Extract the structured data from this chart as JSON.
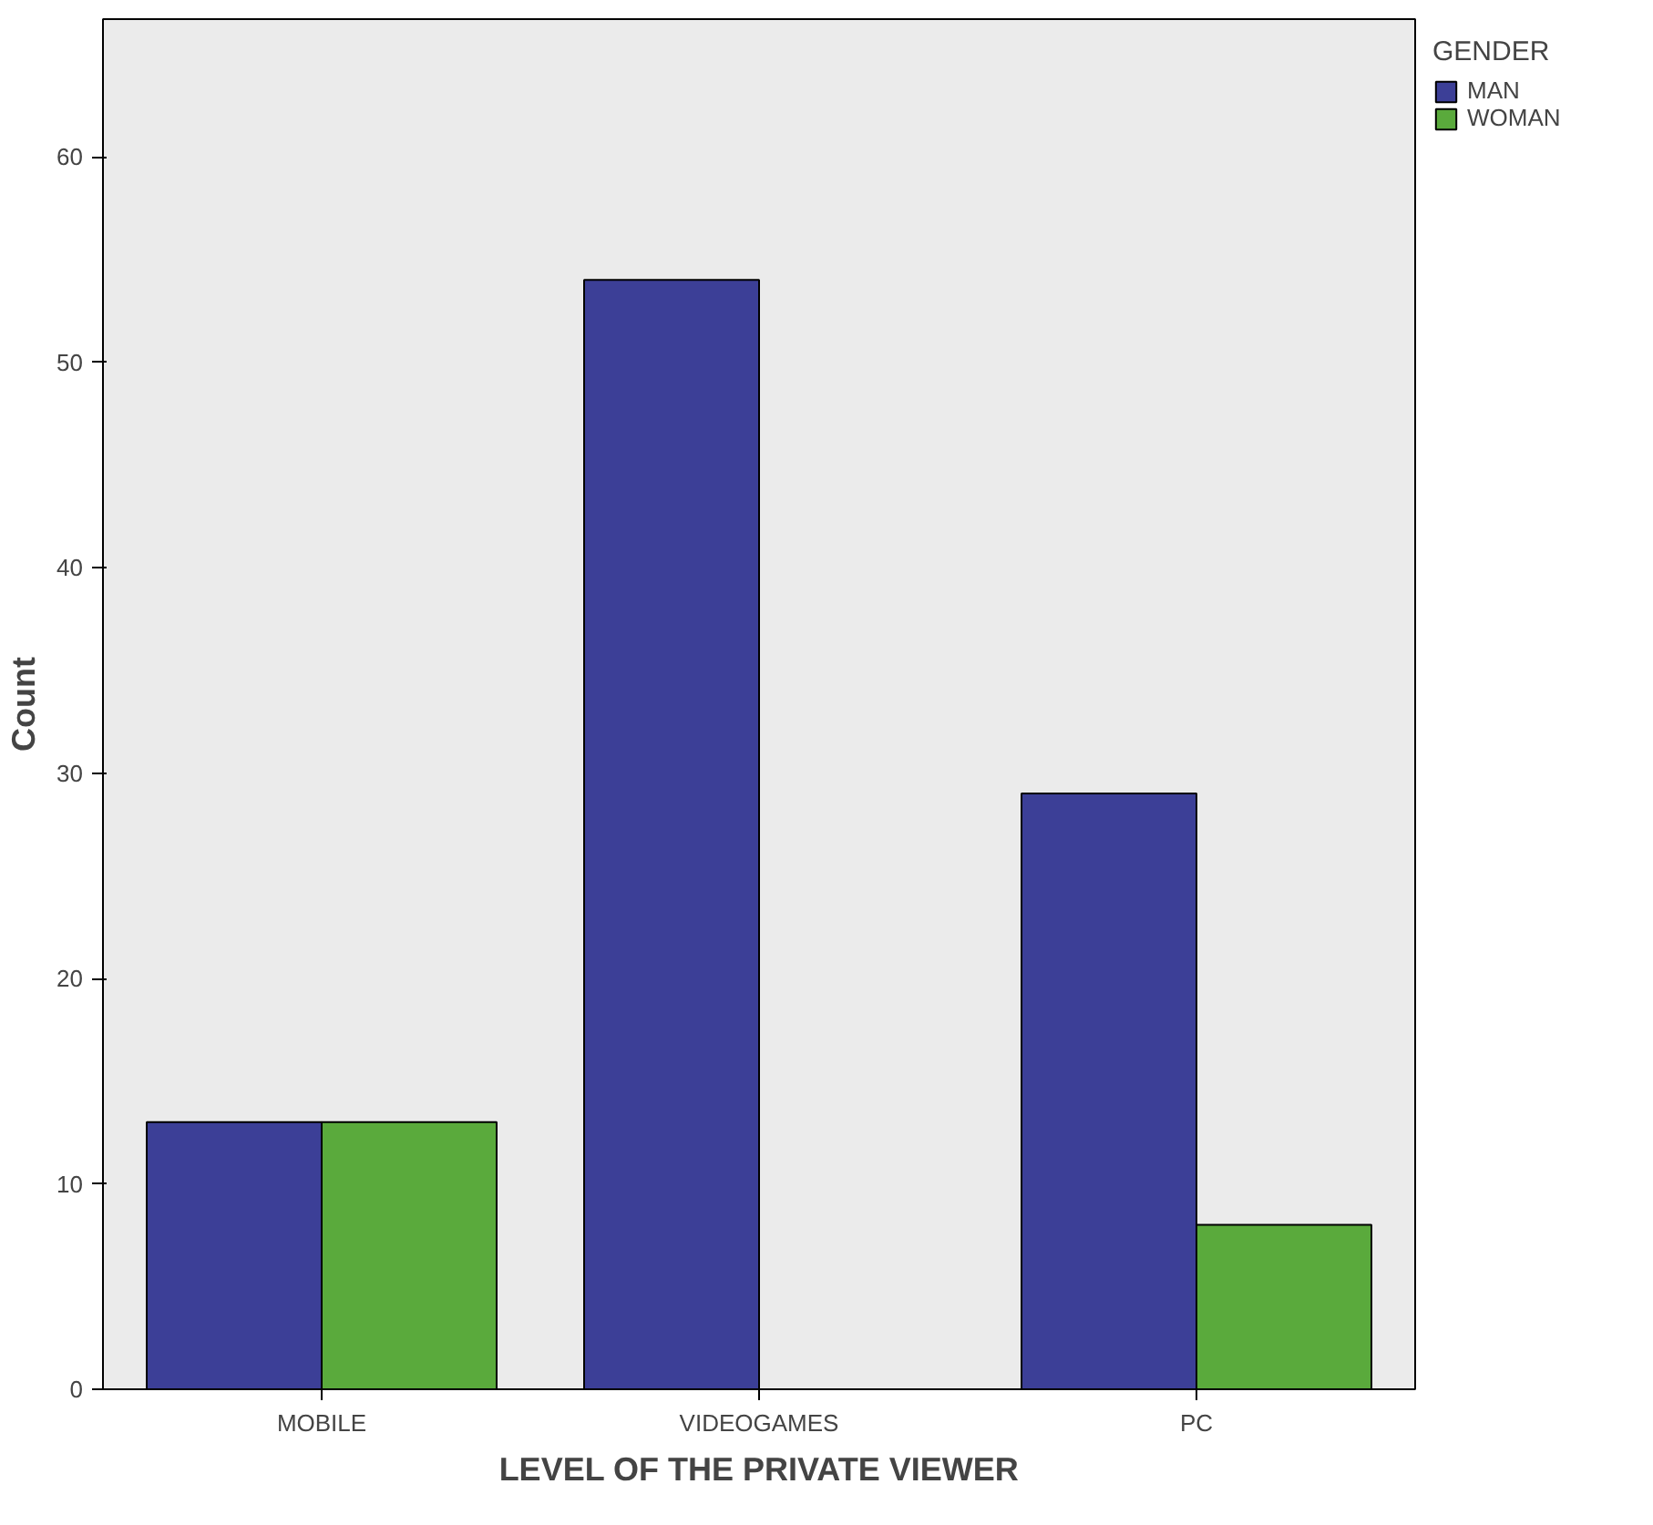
{
  "chart_data": {
    "type": "bar",
    "xlabel": "LEVEL OF THE PRIVATE VIEWER",
    "ylabel": "Count",
    "legend_title": "GENDER",
    "categories": [
      "MOBILE",
      "VIDEOGAMES",
      "PC"
    ],
    "series": [
      {
        "name": "MAN",
        "color": "#3c3f97",
        "values": [
          13,
          54,
          29
        ]
      },
      {
        "name": "WOMAN",
        "color": "#5aaa3c",
        "values": [
          13,
          null,
          8
        ]
      }
    ],
    "ylim": [
      0,
      66.7
    ],
    "yticks": [
      0,
      10,
      20,
      30,
      40,
      50,
      60
    ],
    "grid": false,
    "legend": "top right"
  }
}
